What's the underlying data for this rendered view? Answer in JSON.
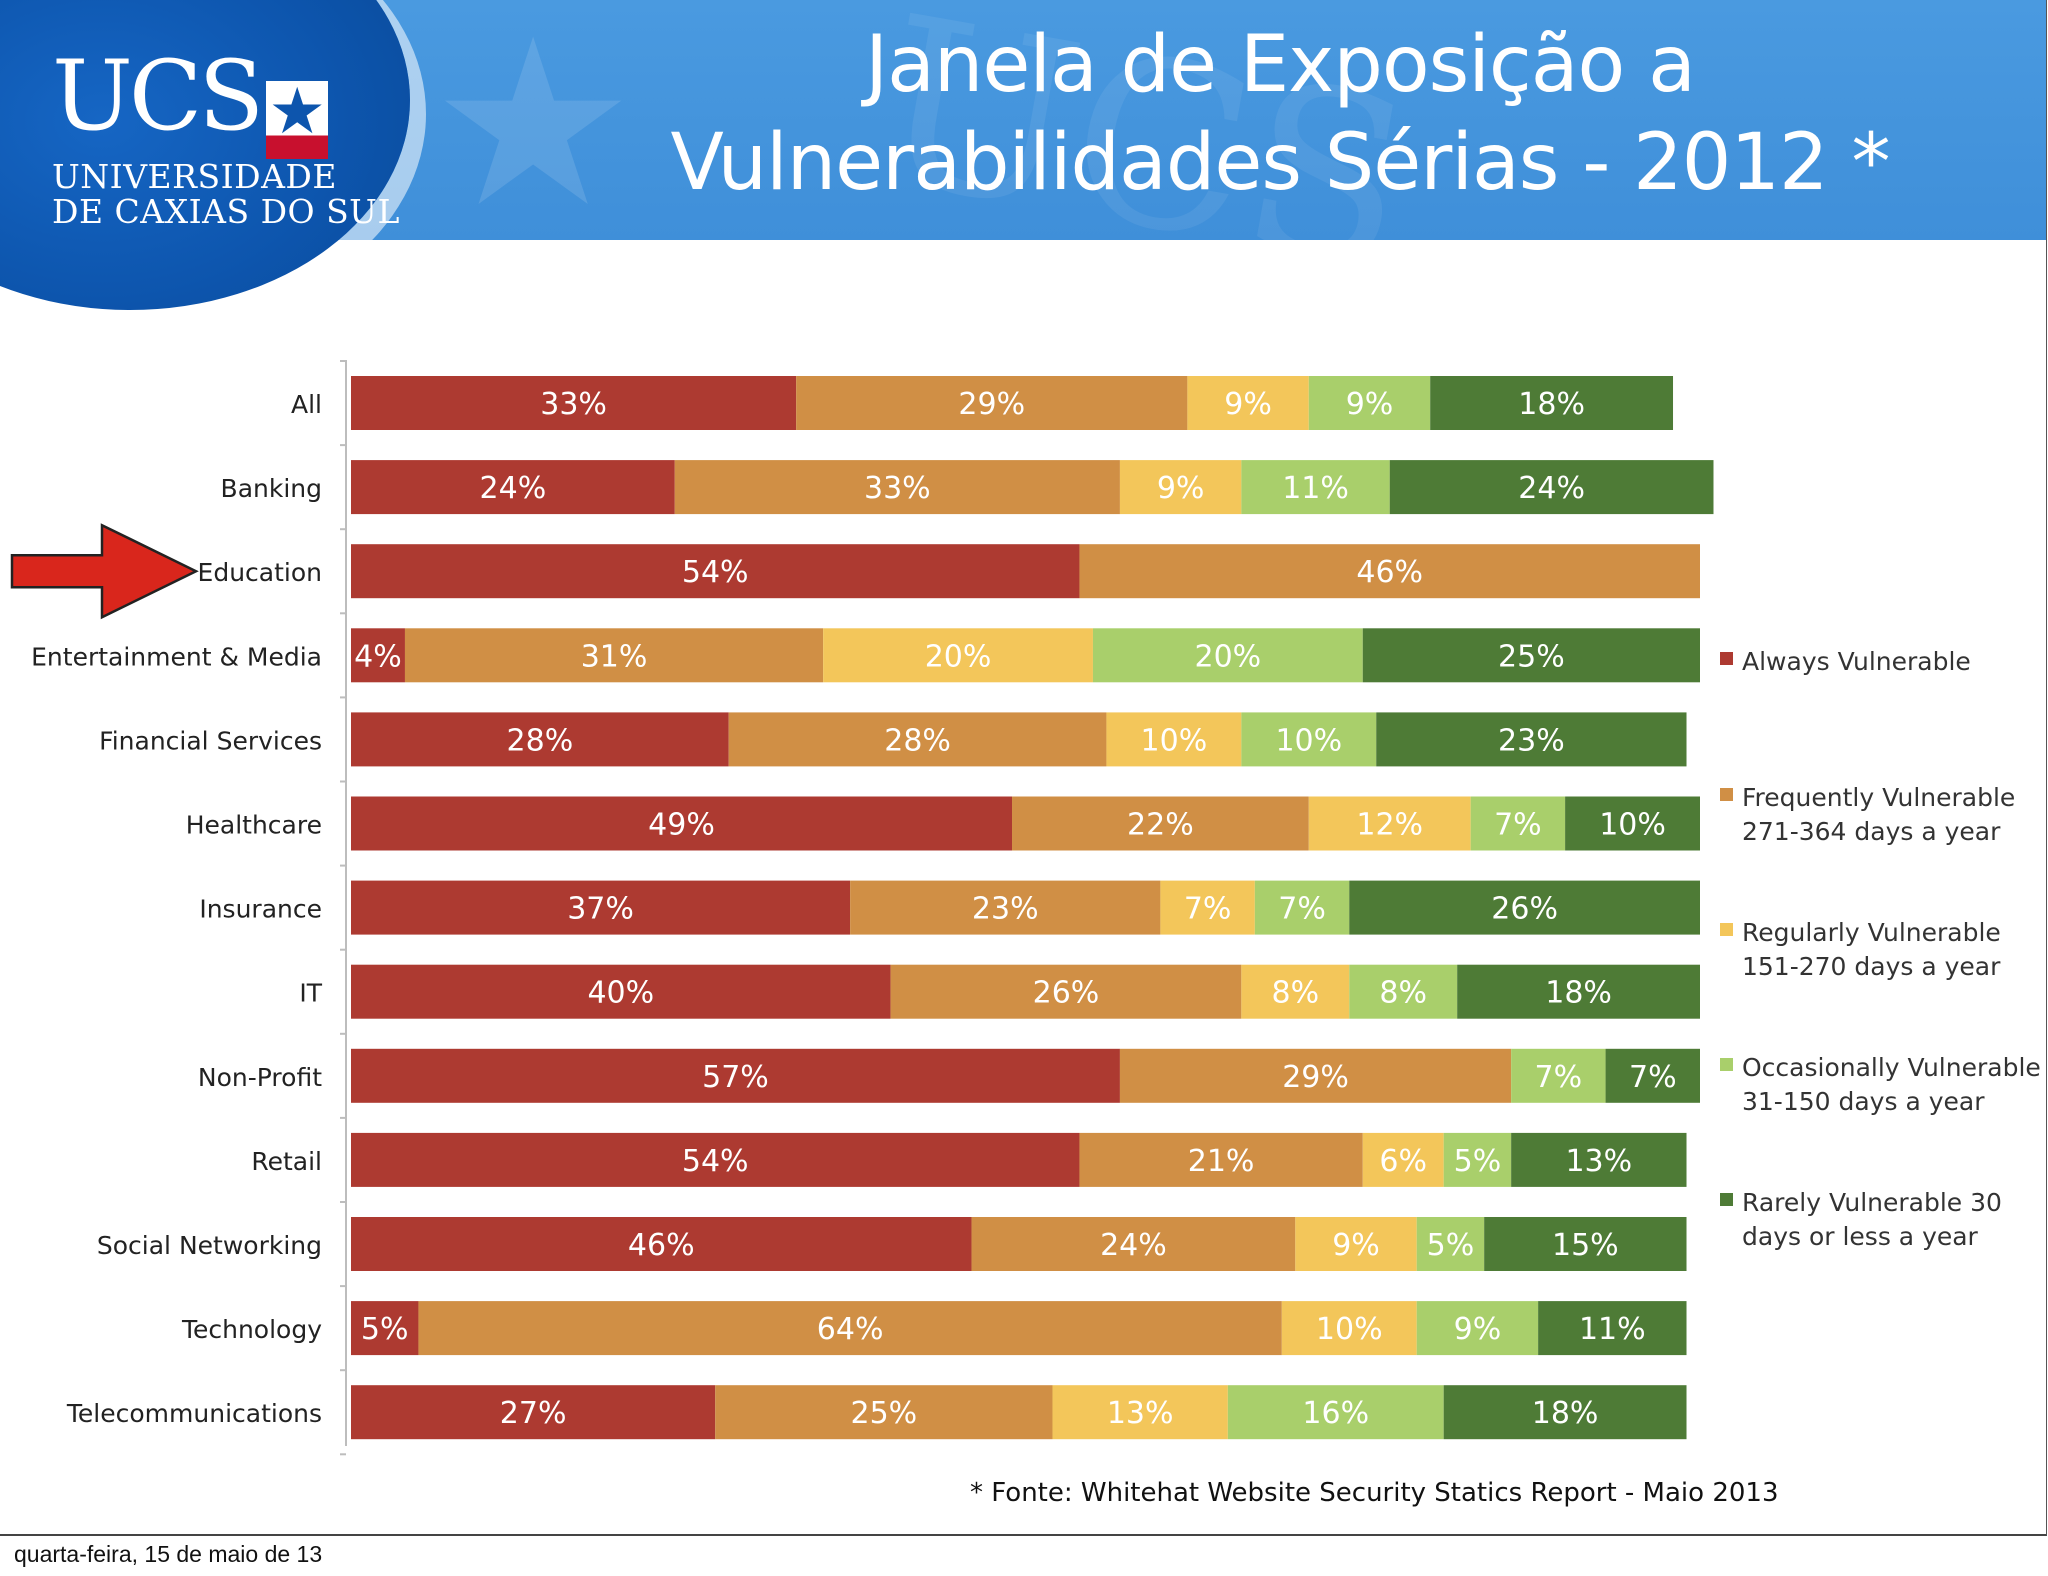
{
  "header": {
    "logo": {
      "ucs": "UCS",
      "line1": "UNIVERSIDADE",
      "line2": "DE CAXIAS DO SUL"
    },
    "title_line1": "Janela de Exposição a",
    "title_line2": "Vulnerabilidades Sérias - 2012 *"
  },
  "chart_data": {
    "type": "bar",
    "orientation": "horizontal",
    "stacked": true,
    "xlim": [
      0,
      100
    ],
    "legend_position": "right",
    "categories": [
      "All",
      "Banking",
      "Education",
      "Entertainment & Media",
      "Financial Services",
      "Healthcare",
      "Insurance",
      "IT",
      "Non-Profit",
      "Retail",
      "Social Networking",
      "Technology",
      "Telecommunications"
    ],
    "series": [
      {
        "name": "Always Vulnerable",
        "color": "#ad3a31",
        "values": [
          33,
          24,
          54,
          4,
          28,
          49,
          37,
          40,
          57,
          54,
          46,
          5,
          27
        ]
      },
      {
        "name": "Frequently Vulnerable 271-364 days a year",
        "color": "#d08f45",
        "values": [
          29,
          33,
          46,
          31,
          28,
          22,
          23,
          26,
          29,
          21,
          24,
          64,
          25
        ]
      },
      {
        "name": "Regularly Vulnerable 151-270 days a year",
        "color": "#f3c65a",
        "values": [
          9,
          9,
          0,
          20,
          10,
          12,
          7,
          8,
          0,
          6,
          9,
          10,
          13
        ]
      },
      {
        "name": "Occasionally Vulnerable 31-150 days a year",
        "color": "#a9cf6b",
        "values": [
          9,
          11,
          0,
          20,
          10,
          7,
          7,
          8,
          7,
          5,
          5,
          9,
          16
        ]
      },
      {
        "name": "Rarely Vulnerable 30 days or less a year",
        "color": "#4e7b36",
        "values": [
          18,
          24,
          0,
          25,
          23,
          10,
          26,
          18,
          7,
          13,
          15,
          11,
          18
        ]
      }
    ],
    "legend": [
      {
        "lines": [
          "Always Vulnerable"
        ],
        "color": "#ad3a31"
      },
      {
        "lines": [
          "Frequently Vulnerable",
          "271-364 days a year"
        ],
        "color": "#d08f45"
      },
      {
        "lines": [
          "Regularly Vulnerable",
          "151-270 days a year"
        ],
        "color": "#f3c65a"
      },
      {
        "lines": [
          "Occasionally Vulnerable",
          "31-150 days a year"
        ],
        "color": "#a9cf6b"
      },
      {
        "lines": [
          "Rarely Vulnerable 30",
          "days or less a year"
        ],
        "color": "#4e7b36"
      }
    ],
    "highlight": {
      "category": "Education",
      "marker": "red-arrow",
      "color": "#d9261c"
    }
  },
  "footnote": "* Fonte: Whitehat Website Security Statics Report - Maio 2013",
  "footer_date": "quarta-feira, 15 de maio de 13"
}
